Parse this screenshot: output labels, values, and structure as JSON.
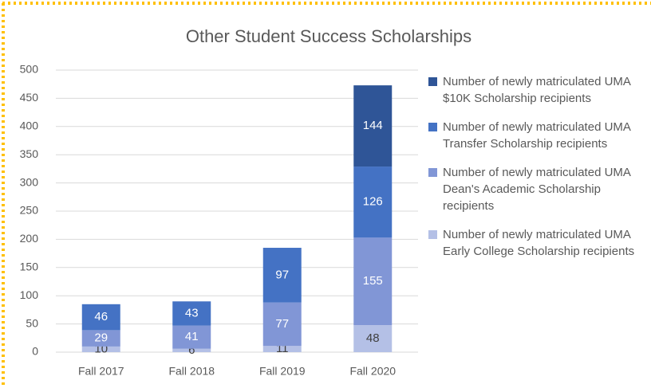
{
  "chart_data": {
    "type": "stacked_bar",
    "title": "Other Student Success Scholarships",
    "categories": [
      "Fall 2017",
      "Fall 2018",
      "Fall 2019",
      "Fall 2020"
    ],
    "series": [
      {
        "name": "Number of newly matriculated UMA Early College Scholarship recipients",
        "color": "#b4c0e6",
        "label_color": "#404040",
        "values": [
          10,
          6,
          11,
          48
        ]
      },
      {
        "name": "Number of newly matriculated UMA Dean's Academic Scholarship recipients",
        "color": "#8196d6",
        "label_color": "#ffffff",
        "values": [
          29,
          41,
          77,
          155
        ]
      },
      {
        "name": "Number of newly matriculated UMA Transfer Scholarship recipients",
        "color": "#4472c4",
        "label_color": "#ffffff",
        "values": [
          46,
          43,
          97,
          126
        ]
      },
      {
        "name": "Number of newly matriculated UMA $10K Scholarship recipients",
        "color": "#2f5597",
        "label_color": "#ffffff",
        "values": [
          null,
          null,
          null,
          144
        ]
      }
    ],
    "ylim": [
      0,
      500
    ],
    "yticks": [
      0,
      50,
      100,
      150,
      200,
      250,
      300,
      350,
      400,
      450,
      500
    ],
    "grid": true,
    "legend": "right"
  }
}
